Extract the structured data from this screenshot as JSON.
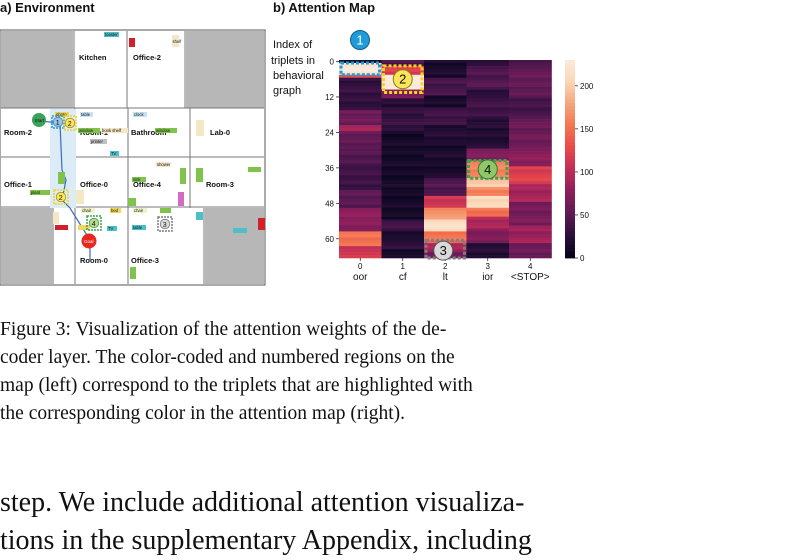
{
  "panel_a": {
    "title": "a) Environment",
    "rooms": [
      "Kitchen",
      "Office-2",
      "Room-2",
      "Room-1",
      "Bathroom",
      "Lab-0",
      "Office-1",
      "Office-0",
      "Office-4",
      "Room-3",
      "Room-0",
      "Office-3"
    ],
    "objects": [
      "toaster",
      "shelf",
      "photo",
      "table",
      "clock",
      "window",
      "book shelf",
      "printer",
      "TV",
      "sink",
      "toilet",
      "shower",
      "plant",
      "chair",
      "bed",
      "vase",
      "Goal",
      "Start"
    ],
    "markers": [
      "1",
      "2",
      "3",
      "4"
    ]
  },
  "panel_b": {
    "title": "b) Attention Map",
    "annotation": [
      "Index of",
      "triplets in",
      "behavioral",
      "graph"
    ],
    "markers": [
      "1",
      "2",
      "3",
      "4"
    ]
  },
  "chart_data": {
    "type": "heatmap",
    "title": "b) Attention Map",
    "x_tick_indices": [
      "0",
      "1",
      "2",
      "3",
      "4"
    ],
    "x_tick_labels": [
      "oor",
      "cf",
      "lt",
      "ior",
      "<STOP>"
    ],
    "y_ticks": [
      0,
      12,
      24,
      36,
      48,
      60
    ],
    "y_range": [
      0,
      67
    ],
    "colorbar": {
      "ticks": [
        0,
        50,
        100,
        150,
        200
      ],
      "range": [
        0,
        230
      ]
    },
    "colorscale": [
      "#03051a",
      "#2b0f3b",
      "#5c1a54",
      "#8d1e5c",
      "#c02d57",
      "#e8494a",
      "#f37651",
      "#f6a47b",
      "#fbd6b6",
      "#faebdd"
    ],
    "columns": [
      {
        "base": 20,
        "bands": [
          [
            1,
            5,
            225
          ],
          [
            5,
            6,
            130
          ],
          [
            6,
            17,
            30
          ],
          [
            17,
            22,
            60
          ],
          [
            22,
            24,
            90
          ],
          [
            24,
            30,
            55
          ],
          [
            30,
            36,
            45
          ],
          [
            36,
            44,
            35
          ],
          [
            44,
            50,
            50
          ],
          [
            50,
            58,
            75
          ],
          [
            58,
            63,
            150
          ],
          [
            63,
            67,
            110
          ]
        ]
      },
      {
        "base": 12,
        "bands": [
          [
            0,
            2,
            40
          ],
          [
            2,
            5,
            120
          ],
          [
            5,
            10,
            230
          ],
          [
            10,
            13,
            70
          ],
          [
            13,
            16,
            20
          ],
          [
            16,
            24,
            30
          ],
          [
            54,
            58,
            35
          ],
          [
            60,
            64,
            25
          ]
        ]
      },
      {
        "base": 15,
        "bands": [
          [
            6,
            12,
            40
          ],
          [
            16,
            22,
            35
          ],
          [
            22,
            28,
            20
          ],
          [
            40,
            46,
            45
          ],
          [
            46,
            50,
            110
          ],
          [
            50,
            54,
            170
          ],
          [
            54,
            58,
            215
          ],
          [
            58,
            62,
            150
          ],
          [
            62,
            65,
            90
          ],
          [
            65,
            67,
            60
          ]
        ]
      },
      {
        "base": 20,
        "bands": [
          [
            2,
            10,
            45
          ],
          [
            12,
            20,
            35
          ],
          [
            30,
            34,
            70
          ],
          [
            34,
            40,
            160
          ],
          [
            40,
            43,
            200
          ],
          [
            43,
            46,
            160
          ],
          [
            46,
            50,
            210
          ],
          [
            50,
            53,
            150
          ],
          [
            53,
            57,
            95
          ],
          [
            57,
            62,
            70
          ]
        ]
      },
      {
        "base": 40,
        "bands": [
          [
            2,
            12,
            55
          ],
          [
            20,
            30,
            60
          ],
          [
            30,
            36,
            75
          ],
          [
            36,
            42,
            120
          ],
          [
            42,
            48,
            90
          ],
          [
            48,
            56,
            65
          ],
          [
            56,
            62,
            85
          ],
          [
            62,
            67,
            60
          ]
        ]
      }
    ],
    "highlights": [
      {
        "label": "1",
        "color": "#1f9bd7",
        "col": 0,
        "rows": [
          1,
          5
        ]
      },
      {
        "label": "2",
        "color": "#f7d21e",
        "col": 1,
        "rows": [
          2,
          11
        ]
      },
      {
        "label": "3",
        "color": "#7f7f7f",
        "col": 2,
        "rows": [
          61,
          67
        ]
      },
      {
        "label": "4",
        "color": "#38a352",
        "col": 3,
        "rows": [
          34,
          40
        ]
      }
    ]
  },
  "caption": [
    "Figure 3:  Visualization of the attention weights of the de-",
    "coder layer.  The color-coded and numbered regions on the",
    "map (left) correspond to the triplets that are highlighted with",
    "the corresponding color in the attention map (right)."
  ],
  "body_text": [
    "step.   We include additional attention visualiza-",
    "tions in the supplementary Appendix, including"
  ]
}
